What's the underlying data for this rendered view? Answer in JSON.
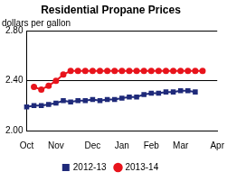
{
  "chart_data": {
    "type": "line",
    "title": "Residential Propane Prices",
    "subtitle": "dollars per gallon",
    "categories": [
      "Oct",
      null,
      null,
      null,
      "Nov",
      null,
      null,
      null,
      null,
      "Dec",
      null,
      null,
      null,
      "Jan",
      null,
      null,
      null,
      "Feb",
      null,
      null,
      null,
      "Mar",
      null,
      null,
      null,
      null,
      "Apr"
    ],
    "series": [
      {
        "name": "2012-13",
        "color": "#1f2a7a",
        "marker": "square",
        "line_style": "solid",
        "values": [
          2.19,
          2.2,
          2.2,
          2.21,
          2.22,
          2.24,
          2.23,
          2.24,
          2.24,
          2.25,
          2.24,
          2.25,
          2.25,
          2.26,
          2.27,
          2.27,
          2.29,
          2.3,
          2.3,
          2.31,
          2.31,
          2.32,
          2.32,
          2.31,
          null,
          null,
          null
        ]
      },
      {
        "name": "2013-14",
        "color": "#e8141c",
        "marker": "circle",
        "line_style": "solid",
        "values": [
          null,
          2.35,
          2.33,
          2.36,
          2.4,
          2.45,
          2.48,
          2.48,
          2.48,
          2.48,
          2.48,
          2.48,
          2.48,
          2.48,
          2.48,
          2.48,
          2.48,
          2.48,
          2.48,
          2.48,
          2.48,
          2.48,
          2.48,
          2.48,
          2.48,
          null,
          null
        ]
      }
    ],
    "ylim": [
      2.0,
      2.8
    ],
    "yticks": [
      {
        "value": 2.0,
        "label": "2.00"
      },
      {
        "value": 2.4,
        "label": "2.40"
      },
      {
        "value": 2.8,
        "label": "2.80"
      }
    ],
    "grid": true,
    "legend": "bottom"
  }
}
